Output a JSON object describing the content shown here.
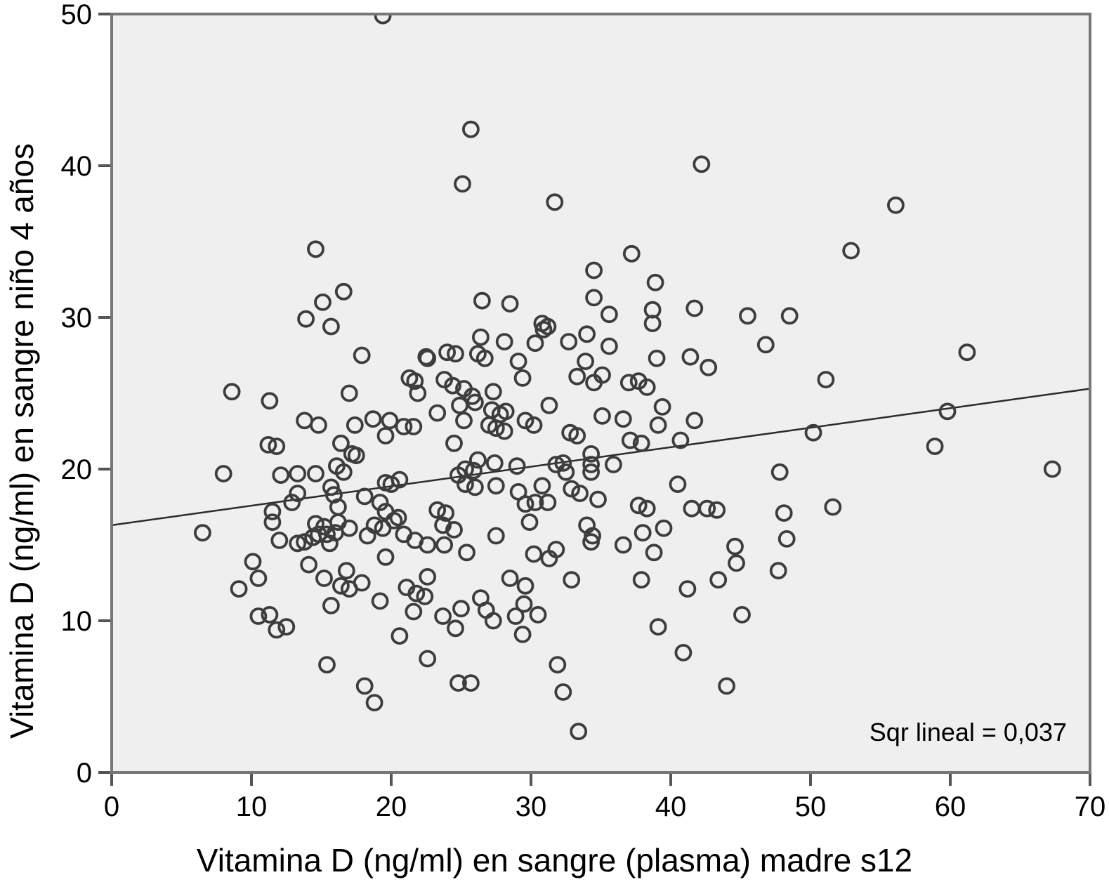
{
  "chart_data": {
    "type": "scatter",
    "title": "",
    "xlabel": "Vitamina D (ng/ml) en sangre (plasma) madre s12",
    "ylabel": "Vitamina D (ng/ml) en sangre niño 4 años",
    "xlim": [
      0,
      70
    ],
    "ylim": [
      0,
      50
    ],
    "x_ticks": [
      0,
      10,
      20,
      30,
      40,
      50,
      60,
      70
    ],
    "y_ticks": [
      0,
      10,
      20,
      30,
      40,
      50
    ],
    "grid": false,
    "legend": "none",
    "annotation": "Sqr lineal = 0,037",
    "marker": "open-circle",
    "regression_line": {
      "x1": 0,
      "y1": 16.3,
      "x2": 70,
      "y2": 25.3
    },
    "points": [
      [
        19.4,
        49.9
      ],
      [
        25.7,
        42.4
      ],
      [
        42.2,
        40.1
      ],
      [
        25.1,
        38.8
      ],
      [
        31.7,
        37.6
      ],
      [
        56.1,
        37.4
      ],
      [
        14.6,
        34.5
      ],
      [
        52.9,
        34.4
      ],
      [
        37.2,
        34.2
      ],
      [
        34.5,
        33.1
      ],
      [
        38.9,
        32.3
      ],
      [
        16.6,
        31.7
      ],
      [
        34.5,
        31.3
      ],
      [
        26.5,
        31.1
      ],
      [
        15.1,
        31.0
      ],
      [
        28.5,
        30.9
      ],
      [
        41.7,
        30.6
      ],
      [
        38.7,
        30.5
      ],
      [
        35.6,
        30.2
      ],
      [
        45.5,
        30.1
      ],
      [
        48.5,
        30.1
      ],
      [
        13.9,
        29.9
      ],
      [
        38.7,
        29.6
      ],
      [
        30.8,
        29.6
      ],
      [
        15.7,
        29.4
      ],
      [
        31.2,
        29.4
      ],
      [
        30.9,
        29.2
      ],
      [
        34.0,
        28.9
      ],
      [
        26.4,
        28.7
      ],
      [
        28.1,
        28.4
      ],
      [
        32.7,
        28.4
      ],
      [
        30.3,
        28.3
      ],
      [
        46.8,
        28.2
      ],
      [
        35.6,
        28.1
      ],
      [
        24.0,
        27.7
      ],
      [
        61.2,
        27.7
      ],
      [
        24.6,
        27.6
      ],
      [
        26.2,
        27.6
      ],
      [
        17.9,
        27.5
      ],
      [
        22.5,
        27.4
      ],
      [
        41.4,
        27.4
      ],
      [
        26.7,
        27.3
      ],
      [
        22.6,
        27.3
      ],
      [
        39.0,
        27.3
      ],
      [
        33.9,
        27.1
      ],
      [
        29.1,
        27.1
      ],
      [
        42.7,
        26.7
      ],
      [
        35.1,
        26.2
      ],
      [
        33.3,
        26.1
      ],
      [
        21.3,
        26.0
      ],
      [
        29.4,
        26.0
      ],
      [
        23.8,
        25.9
      ],
      [
        51.1,
        25.9
      ],
      [
        21.7,
        25.8
      ],
      [
        37.7,
        25.8
      ],
      [
        34.5,
        25.7
      ],
      [
        37.0,
        25.7
      ],
      [
        24.4,
        25.5
      ],
      [
        38.3,
        25.4
      ],
      [
        25.2,
        25.3
      ],
      [
        8.6,
        25.1
      ],
      [
        27.3,
        25.1
      ],
      [
        21.9,
        25.0
      ],
      [
        17.0,
        25.0
      ],
      [
        25.8,
        24.8
      ],
      [
        11.3,
        24.5
      ],
      [
        26.0,
        24.4
      ],
      [
        24.9,
        24.2
      ],
      [
        31.3,
        24.2
      ],
      [
        39.4,
        24.1
      ],
      [
        27.2,
        23.9
      ],
      [
        59.8,
        23.8
      ],
      [
        28.2,
        23.8
      ],
      [
        23.3,
        23.7
      ],
      [
        27.8,
        23.6
      ],
      [
        35.1,
        23.5
      ],
      [
        18.7,
        23.3
      ],
      [
        36.6,
        23.3
      ],
      [
        13.8,
        23.2
      ],
      [
        19.9,
        23.2
      ],
      [
        25.2,
        23.2
      ],
      [
        29.6,
        23.2
      ],
      [
        41.7,
        23.2
      ],
      [
        14.8,
        22.9
      ],
      [
        17.4,
        22.9
      ],
      [
        27.0,
        22.9
      ],
      [
        30.2,
        22.9
      ],
      [
        39.1,
        22.9
      ],
      [
        20.9,
        22.8
      ],
      [
        21.6,
        22.8
      ],
      [
        27.5,
        22.7
      ],
      [
        28.1,
        22.5
      ],
      [
        32.8,
        22.4
      ],
      [
        50.2,
        22.4
      ],
      [
        19.6,
        22.2
      ],
      [
        33.3,
        22.2
      ],
      [
        40.7,
        21.9
      ],
      [
        37.1,
        21.9
      ],
      [
        16.4,
        21.7
      ],
      [
        24.5,
        21.7
      ],
      [
        37.9,
        21.7
      ],
      [
        11.2,
        21.6
      ],
      [
        11.8,
        21.5
      ],
      [
        58.9,
        21.5
      ],
      [
        17.2,
        21.0
      ],
      [
        34.3,
        21.0
      ],
      [
        17.5,
        20.9
      ],
      [
        26.2,
        20.6
      ],
      [
        27.4,
        20.4
      ],
      [
        32.3,
        20.4
      ],
      [
        35.9,
        20.3
      ],
      [
        34.3,
        20.3
      ],
      [
        31.8,
        20.3
      ],
      [
        16.1,
        20.2
      ],
      [
        29.0,
        20.2
      ],
      [
        25.3,
        20.0
      ],
      [
        67.3,
        20.0
      ],
      [
        25.9,
        19.9
      ],
      [
        16.6,
        19.8
      ],
      [
        32.5,
        19.8
      ],
      [
        47.8,
        19.8
      ],
      [
        34.3,
        19.8
      ],
      [
        8.0,
        19.7
      ],
      [
        13.3,
        19.7
      ],
      [
        14.6,
        19.7
      ],
      [
        12.1,
        19.6
      ],
      [
        24.8,
        19.6
      ],
      [
        20.6,
        19.3
      ],
      [
        19.6,
        19.1
      ],
      [
        25.3,
        19.0
      ],
      [
        20.0,
        19.0
      ],
      [
        40.5,
        19.0
      ],
      [
        30.8,
        18.9
      ],
      [
        27.5,
        18.9
      ],
      [
        26.0,
        18.8
      ],
      [
        15.7,
        18.8
      ],
      [
        32.9,
        18.7
      ],
      [
        29.1,
        18.5
      ],
      [
        13.3,
        18.4
      ],
      [
        33.5,
        18.4
      ],
      [
        15.9,
        18.3
      ],
      [
        18.1,
        18.2
      ],
      [
        34.8,
        18.0
      ],
      [
        12.9,
        17.8
      ],
      [
        19.2,
        17.8
      ],
      [
        30.3,
        17.8
      ],
      [
        31.2,
        17.8
      ],
      [
        29.6,
        17.7
      ],
      [
        37.7,
        17.6
      ],
      [
        16.2,
        17.5
      ],
      [
        51.6,
        17.5
      ],
      [
        41.5,
        17.4
      ],
      [
        42.6,
        17.4
      ],
      [
        38.3,
        17.4
      ],
      [
        23.3,
        17.3
      ],
      [
        43.3,
        17.3
      ],
      [
        11.5,
        17.2
      ],
      [
        19.6,
        17.2
      ],
      [
        23.9,
        17.1
      ],
      [
        48.1,
        17.1
      ],
      [
        20.5,
        16.8
      ],
      [
        20.2,
        16.6
      ],
      [
        11.5,
        16.5
      ],
      [
        16.2,
        16.5
      ],
      [
        29.9,
        16.5
      ],
      [
        14.6,
        16.4
      ],
      [
        23.7,
        16.3
      ],
      [
        18.8,
        16.3
      ],
      [
        34.0,
        16.3
      ],
      [
        15.2,
        16.2
      ],
      [
        19.4,
        16.1
      ],
      [
        17.0,
        16.1
      ],
      [
        39.5,
        16.1
      ],
      [
        24.5,
        16.0
      ],
      [
        16.0,
        15.8
      ],
      [
        38.0,
        15.8
      ],
      [
        6.5,
        15.8
      ],
      [
        14.8,
        15.7
      ],
      [
        20.9,
        15.7
      ],
      [
        15.4,
        15.7
      ],
      [
        27.5,
        15.6
      ],
      [
        18.3,
        15.6
      ],
      [
        34.4,
        15.6
      ],
      [
        14.4,
        15.5
      ],
      [
        48.3,
        15.4
      ],
      [
        12.0,
        15.3
      ],
      [
        21.7,
        15.3
      ],
      [
        13.8,
        15.2
      ],
      [
        34.3,
        15.2
      ],
      [
        13.3,
        15.1
      ],
      [
        15.6,
        15.1
      ],
      [
        23.8,
        15.0
      ],
      [
        22.6,
        15.0
      ],
      [
        36.6,
        15.0
      ],
      [
        44.6,
        14.9
      ],
      [
        31.8,
        14.7
      ],
      [
        25.4,
        14.5
      ],
      [
        38.8,
        14.5
      ],
      [
        30.2,
        14.4
      ],
      [
        19.6,
        14.2
      ],
      [
        31.3,
        14.1
      ],
      [
        10.1,
        13.9
      ],
      [
        44.7,
        13.8
      ],
      [
        14.1,
        13.7
      ],
      [
        16.8,
        13.3
      ],
      [
        47.7,
        13.3
      ],
      [
        22.6,
        12.9
      ],
      [
        10.5,
        12.8
      ],
      [
        15.2,
        12.8
      ],
      [
        28.5,
        12.8
      ],
      [
        32.9,
        12.7
      ],
      [
        37.9,
        12.7
      ],
      [
        43.4,
        12.7
      ],
      [
        17.9,
        12.5
      ],
      [
        16.4,
        12.3
      ],
      [
        29.6,
        12.3
      ],
      [
        21.1,
        12.2
      ],
      [
        9.1,
        12.1
      ],
      [
        17.0,
        12.1
      ],
      [
        41.2,
        12.1
      ],
      [
        21.8,
        11.8
      ],
      [
        22.4,
        11.6
      ],
      [
        26.4,
        11.5
      ],
      [
        19.2,
        11.3
      ],
      [
        29.5,
        11.1
      ],
      [
        15.7,
        11.0
      ],
      [
        25.0,
        10.8
      ],
      [
        26.8,
        10.7
      ],
      [
        21.6,
        10.6
      ],
      [
        30.5,
        10.4
      ],
      [
        45.1,
        10.4
      ],
      [
        11.3,
        10.4
      ],
      [
        10.5,
        10.3
      ],
      [
        23.7,
        10.3
      ],
      [
        28.9,
        10.3
      ],
      [
        27.3,
        10.0
      ],
      [
        12.5,
        9.6
      ],
      [
        39.1,
        9.6
      ],
      [
        24.6,
        9.5
      ],
      [
        11.8,
        9.4
      ],
      [
        29.4,
        9.1
      ],
      [
        20.6,
        9.0
      ],
      [
        40.9,
        7.9
      ],
      [
        22.6,
        7.5
      ],
      [
        15.4,
        7.1
      ],
      [
        31.9,
        7.1
      ],
      [
        24.8,
        5.9
      ],
      [
        25.7,
        5.9
      ],
      [
        18.1,
        5.7
      ],
      [
        44.0,
        5.7
      ],
      [
        32.3,
        5.3
      ],
      [
        18.8,
        4.6
      ],
      [
        33.4,
        2.7
      ]
    ]
  },
  "labels": {
    "x_axis_title": "Vitamina D (ng/ml) en sangre (plasma) madre s12",
    "y_axis_title": "Vitamina D (ng/ml) en sangre niño 4 años",
    "annotation": "Sqr lineal = 0,037"
  },
  "colors": {
    "plot_background": "#f0efef",
    "page_background": "#ffffff",
    "border": "#777777",
    "tick": "#555555",
    "marker_stroke": "#3d3d3d",
    "regression_line": "#2b2b2b",
    "text": "#000000"
  }
}
